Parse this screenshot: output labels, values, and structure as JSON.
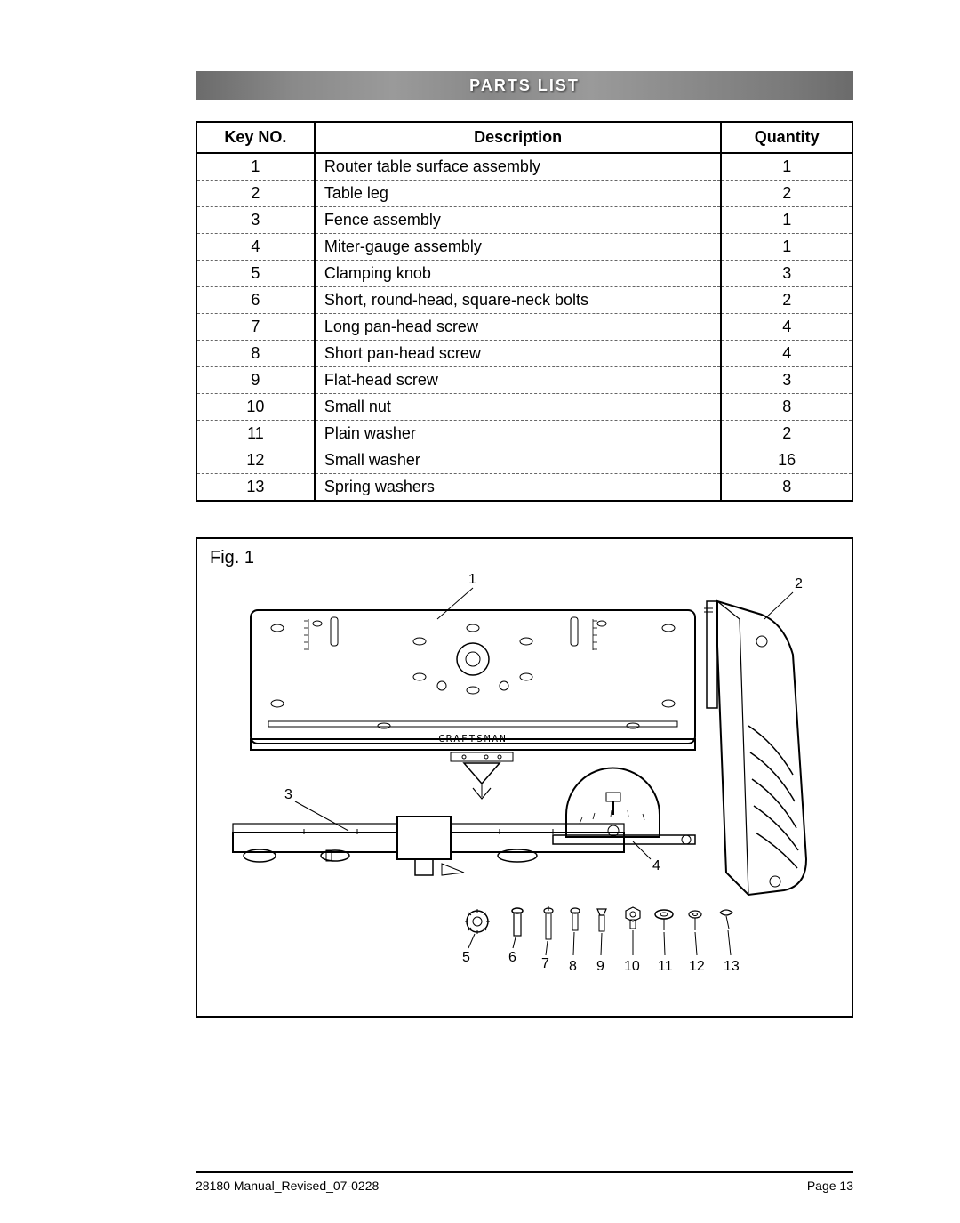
{
  "header": {
    "title": "PARTS LIST"
  },
  "table": {
    "columns": [
      "Key NO.",
      "Description",
      "Quantity"
    ],
    "rows": [
      {
        "key": "1",
        "desc": "Router table surface assembly",
        "qty": "1"
      },
      {
        "key": "2",
        "desc": "Table leg",
        "qty": "2"
      },
      {
        "key": "3",
        "desc": "Fence assembly",
        "qty": "1"
      },
      {
        "key": "4",
        "desc": "Miter-gauge assembly",
        "qty": "1"
      },
      {
        "key": "5",
        "desc": "Clamping knob",
        "qty": "3"
      },
      {
        "key": "6",
        "desc": "Short, round-head, square-neck bolts",
        "qty": "2"
      },
      {
        "key": "7",
        "desc": "Long pan-head screw",
        "qty": "4"
      },
      {
        "key": "8",
        "desc": "Short pan-head screw",
        "qty": "4"
      },
      {
        "key": "9",
        "desc": "Flat-head screw",
        "qty": "3"
      },
      {
        "key": "10",
        "desc": "Small nut",
        "qty": "8"
      },
      {
        "key": "11",
        "desc": "Plain washer",
        "qty": "2"
      },
      {
        "key": "12",
        "desc": "Small washer",
        "qty": "16"
      },
      {
        "key": "13",
        "desc": "Spring washers",
        "qty": "8"
      }
    ]
  },
  "figure": {
    "label": "Fig. 1",
    "brand_text": "CRAFTSMAN",
    "callouts": [
      "1",
      "2",
      "3",
      "4",
      "5",
      "6",
      "7",
      "8",
      "9",
      "10",
      "11",
      "12",
      "13"
    ]
  },
  "footer": {
    "left": "28180 Manual_Revised_07-0228",
    "right": "Page 13"
  },
  "style": {
    "border_color": "#000000",
    "dash_color": "#666666",
    "header_bg": "#8a8a8a",
    "header_text": "#ffffff",
    "font_size_table": 18,
    "font_size_footer": 14
  }
}
